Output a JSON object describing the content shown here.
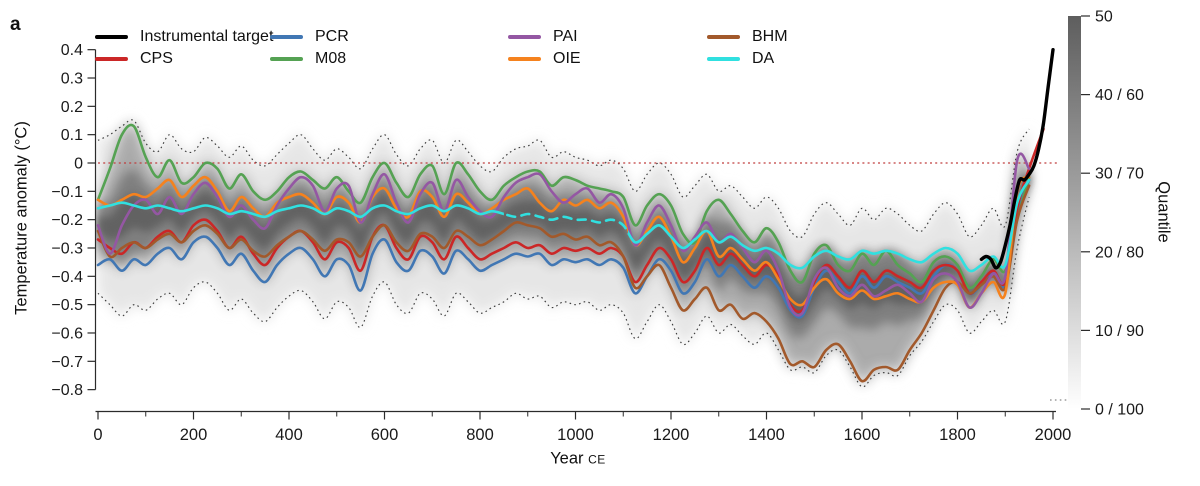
{
  "panel_label": "a",
  "legend": {
    "items": [
      {
        "label": "Instrumental target",
        "color": "#000000"
      },
      {
        "label": "CPS",
        "color": "#cb2727"
      },
      {
        "label": "PCR",
        "color": "#4177b4"
      },
      {
        "label": "M08",
        "color": "#55a253"
      },
      {
        "label": "PAI",
        "color": "#9457a3"
      },
      {
        "label": "OIE",
        "color": "#f5821e"
      },
      {
        "label": "BHM",
        "color": "#a2592b"
      },
      {
        "label": "DA",
        "color": "#30e0e0"
      }
    ]
  },
  "chart_data": {
    "type": "line",
    "title": "",
    "xlabel": "Year CE",
    "xlabel_main": "Year",
    "xlabel_suffix": "CE",
    "ylabel": "Temperature anomaly (°C)",
    "xlim": [
      0,
      2000
    ],
    "ylim": [
      -0.8,
      0.4
    ],
    "x_ticks": [
      0,
      200,
      400,
      600,
      800,
      1000,
      1200,
      1400,
      1600,
      1800,
      2000
    ],
    "x_tick_labels": [
      "0",
      "200",
      "400",
      "600",
      "800",
      "1000",
      "1200",
      "1400",
      "1600",
      "1800",
      "2000"
    ],
    "x_minor_step": 100,
    "y_ticks": [
      0.4,
      0.3,
      0.2,
      0.1,
      0,
      -0.1,
      -0.2,
      -0.3,
      -0.4,
      -0.5,
      -0.6,
      -0.7,
      -0.8
    ],
    "y_tick_labels": [
      "0.4",
      "0.3",
      "0.2",
      "0.1",
      "0",
      "−0.1",
      "−0.2",
      "−0.3",
      "−0.4",
      "−0.5",
      "−0.6",
      "−0.7",
      "−0.8"
    ],
    "zero_line": 0,
    "zero_line_color": "#c03e3e",
    "years": [
      0,
      25,
      50,
      75,
      100,
      125,
      150,
      175,
      200,
      225,
      250,
      275,
      300,
      325,
      350,
      375,
      400,
      425,
      450,
      475,
      500,
      525,
      550,
      575,
      600,
      625,
      650,
      675,
      700,
      725,
      750,
      775,
      800,
      825,
      850,
      875,
      900,
      925,
      950,
      975,
      1000,
      1025,
      1050,
      1075,
      1100,
      1125,
      1150,
      1175,
      1200,
      1225,
      1250,
      1275,
      1300,
      1325,
      1350,
      1375,
      1400,
      1425,
      1450,
      1475,
      1500,
      1525,
      1550,
      1575,
      1600,
      1625,
      1650,
      1675,
      1700,
      1725,
      1750,
      1775,
      1800,
      1825,
      1850,
      1875,
      1900,
      1925,
      1950,
      1980
    ],
    "series": [
      {
        "name": "CPS",
        "color": "#cb2727",
        "z": 3,
        "values": [
          -0.27,
          -0.3,
          -0.32,
          -0.28,
          -0.3,
          -0.26,
          -0.24,
          -0.28,
          -0.22,
          -0.2,
          -0.24,
          -0.3,
          -0.26,
          -0.32,
          -0.36,
          -0.3,
          -0.26,
          -0.24,
          -0.28,
          -0.34,
          -0.28,
          -0.3,
          -0.38,
          -0.26,
          -0.22,
          -0.3,
          -0.34,
          -0.26,
          -0.28,
          -0.34,
          -0.26,
          -0.3,
          -0.34,
          -0.32,
          -0.3,
          -0.28,
          -0.3,
          -0.29,
          -0.32,
          -0.3,
          -0.31,
          -0.3,
          -0.32,
          -0.3,
          -0.33,
          -0.42,
          -0.36,
          -0.3,
          -0.34,
          -0.42,
          -0.38,
          -0.3,
          -0.36,
          -0.32,
          -0.36,
          -0.4,
          -0.36,
          -0.4,
          -0.5,
          -0.52,
          -0.42,
          -0.36,
          -0.4,
          -0.44,
          -0.38,
          -0.42,
          -0.38,
          -0.4,
          -0.42,
          -0.44,
          -0.38,
          -0.36,
          -0.38,
          -0.46,
          -0.42,
          -0.38,
          -0.42,
          -0.16,
          -0.02,
          0.12
        ]
      },
      {
        "name": "PCR",
        "color": "#4177b4",
        "z": 1,
        "values": [
          -0.36,
          -0.34,
          -0.38,
          -0.34,
          -0.36,
          -0.32,
          -0.3,
          -0.34,
          -0.28,
          -0.26,
          -0.3,
          -0.36,
          -0.32,
          -0.38,
          -0.42,
          -0.36,
          -0.32,
          -0.3,
          -0.34,
          -0.4,
          -0.34,
          -0.36,
          -0.45,
          -0.32,
          -0.27,
          -0.35,
          -0.38,
          -0.31,
          -0.33,
          -0.39,
          -0.31,
          -0.34,
          -0.38,
          -0.36,
          -0.34,
          -0.32,
          -0.33,
          -0.32,
          -0.36,
          -0.34,
          -0.35,
          -0.34,
          -0.36,
          -0.34,
          -0.37,
          -0.46,
          -0.4,
          -0.34,
          -0.38,
          -0.46,
          -0.42,
          -0.34,
          -0.4,
          -0.36,
          -0.4,
          -0.44,
          -0.4,
          -0.44,
          -0.52,
          -0.54,
          -0.44,
          -0.38,
          -0.42,
          -0.46,
          -0.4,
          -0.44,
          -0.4,
          -0.42,
          -0.44,
          -0.46,
          -0.4,
          -0.36,
          -0.38,
          -0.46,
          -0.43,
          -0.39,
          -0.43,
          -0.18,
          -0.06,
          null
        ]
      },
      {
        "name": "M08",
        "color": "#55a253",
        "z": 2,
        "values": [
          -0.13,
          -0.02,
          0.1,
          0.13,
          0.02,
          -0.05,
          0.01,
          -0.07,
          -0.05,
          0.0,
          -0.02,
          -0.09,
          -0.04,
          -0.1,
          -0.13,
          -0.1,
          -0.05,
          -0.03,
          -0.06,
          -0.09,
          -0.05,
          -0.1,
          -0.14,
          -0.05,
          0.0,
          -0.07,
          -0.12,
          -0.04,
          -0.01,
          -0.11,
          0.0,
          -0.04,
          -0.1,
          -0.13,
          -0.08,
          -0.05,
          -0.03,
          -0.03,
          -0.08,
          -0.05,
          -0.06,
          -0.08,
          -0.09,
          -0.1,
          -0.12,
          -0.22,
          -0.15,
          -0.11,
          -0.15,
          -0.25,
          -0.28,
          -0.17,
          -0.13,
          -0.18,
          -0.24,
          -0.28,
          -0.23,
          -0.28,
          -0.38,
          -0.42,
          -0.32,
          -0.29,
          -0.36,
          -0.38,
          -0.32,
          -0.36,
          -0.31,
          -0.36,
          -0.39,
          -0.42,
          -0.35,
          -0.33,
          -0.36,
          -0.44,
          -0.4,
          -0.34,
          -0.38,
          -0.2,
          -0.05,
          null
        ]
      },
      {
        "name": "PAI",
        "color": "#9457a3",
        "z": 6,
        "values": [
          -0.22,
          -0.32,
          -0.22,
          -0.15,
          -0.13,
          -0.18,
          -0.12,
          -0.18,
          -0.11,
          -0.07,
          -0.12,
          -0.19,
          -0.15,
          -0.2,
          -0.23,
          -0.15,
          -0.09,
          -0.05,
          -0.08,
          -0.17,
          -0.09,
          -0.08,
          -0.21,
          -0.11,
          -0.04,
          -0.14,
          -0.21,
          -0.11,
          -0.07,
          -0.17,
          -0.06,
          -0.12,
          -0.17,
          -0.19,
          -0.12,
          -0.07,
          -0.05,
          -0.04,
          -0.1,
          -0.14,
          -0.11,
          -0.09,
          -0.14,
          -0.11,
          -0.16,
          -0.29,
          -0.21,
          -0.15,
          -0.22,
          -0.31,
          -0.26,
          -0.21,
          -0.28,
          -0.25,
          -0.3,
          -0.35,
          -0.31,
          -0.38,
          -0.51,
          -0.53,
          -0.41,
          -0.37,
          -0.44,
          -0.47,
          -0.43,
          -0.47,
          -0.45,
          -0.43,
          -0.46,
          -0.49,
          -0.41,
          -0.39,
          -0.42,
          -0.51,
          -0.46,
          -0.39,
          -0.4,
          0.01,
          -0.02,
          null
        ]
      },
      {
        "name": "OIE",
        "color": "#f5821e",
        "z": 5,
        "values": [
          -0.13,
          -0.15,
          -0.13,
          -0.11,
          -0.12,
          -0.09,
          -0.06,
          -0.12,
          -0.08,
          -0.05,
          -0.1,
          -0.17,
          -0.12,
          -0.16,
          -0.19,
          -0.14,
          -0.12,
          -0.11,
          -0.14,
          -0.18,
          -0.12,
          -0.14,
          -0.21,
          -0.12,
          -0.09,
          -0.16,
          -0.19,
          -0.1,
          -0.12,
          -0.19,
          -0.11,
          -0.14,
          -0.18,
          -0.16,
          -0.13,
          -0.11,
          -0.09,
          -0.14,
          -0.17,
          -0.13,
          -0.15,
          -0.13,
          -0.16,
          -0.14,
          -0.19,
          -0.29,
          -0.24,
          -0.19,
          -0.26,
          -0.35,
          -0.3,
          -0.24,
          -0.33,
          -0.3,
          -0.34,
          -0.38,
          -0.35,
          -0.41,
          -0.48,
          -0.5,
          -0.44,
          -0.41,
          -0.46,
          -0.48,
          -0.45,
          -0.48,
          -0.47,
          -0.46,
          -0.48,
          -0.49,
          -0.44,
          -0.42,
          -0.43,
          -0.51,
          -0.46,
          -0.42,
          -0.46,
          -0.1,
          -0.05,
          null
        ]
      },
      {
        "name": "BHM",
        "color": "#a2592b",
        "z": 4,
        "values": [
          -0.24,
          -0.33,
          -0.3,
          -0.28,
          -0.3,
          -0.27,
          -0.25,
          -0.28,
          -0.24,
          -0.22,
          -0.25,
          -0.3,
          -0.27,
          -0.31,
          -0.33,
          -0.29,
          -0.26,
          -0.24,
          -0.27,
          -0.31,
          -0.27,
          -0.28,
          -0.33,
          -0.26,
          -0.22,
          -0.28,
          -0.31,
          -0.25,
          -0.26,
          -0.3,
          -0.24,
          -0.26,
          -0.29,
          -0.27,
          -0.24,
          -0.21,
          -0.22,
          -0.23,
          -0.26,
          -0.25,
          -0.27,
          -0.26,
          -0.29,
          -0.28,
          -0.33,
          -0.44,
          -0.4,
          -0.36,
          -0.44,
          -0.52,
          -0.48,
          -0.44,
          -0.52,
          -0.5,
          -0.55,
          -0.53,
          -0.56,
          -0.62,
          -0.71,
          -0.7,
          -0.72,
          -0.66,
          -0.64,
          -0.7,
          -0.77,
          -0.73,
          -0.72,
          -0.73,
          -0.66,
          -0.6,
          -0.52,
          -0.44,
          -0.42,
          -0.46,
          -0.43,
          -0.4,
          -0.44,
          -0.2,
          -0.08,
          null
        ]
      },
      {
        "name": "DA",
        "color": "#30e0e0",
        "z": 7,
        "dash_year_range": [
          850,
          1110
        ],
        "values": [
          -0.16,
          -0.15,
          -0.14,
          -0.15,
          -0.16,
          -0.15,
          -0.16,
          -0.17,
          -0.16,
          -0.15,
          -0.16,
          -0.18,
          -0.17,
          -0.18,
          -0.19,
          -0.17,
          -0.16,
          -0.15,
          -0.16,
          -0.18,
          -0.16,
          -0.17,
          -0.19,
          -0.16,
          -0.15,
          -0.17,
          -0.18,
          -0.16,
          -0.15,
          -0.17,
          -0.15,
          -0.16,
          -0.18,
          -0.17,
          -0.18,
          -0.19,
          -0.18,
          -0.19,
          -0.2,
          -0.19,
          -0.2,
          -0.2,
          -0.21,
          -0.2,
          -0.22,
          -0.28,
          -0.25,
          -0.22,
          -0.26,
          -0.3,
          -0.27,
          -0.24,
          -0.28,
          -0.26,
          -0.29,
          -0.31,
          -0.3,
          -0.32,
          -0.36,
          -0.37,
          -0.33,
          -0.31,
          -0.33,
          -0.34,
          -0.31,
          -0.32,
          -0.31,
          -0.32,
          -0.34,
          -0.35,
          -0.32,
          -0.3,
          -0.32,
          -0.38,
          -0.36,
          -0.33,
          -0.36,
          -0.14,
          -0.06,
          null
        ]
      }
    ],
    "instrumental": {
      "name": "Instrumental target",
      "color": "#000000",
      "years": [
        1850,
        1860,
        1870,
        1880,
        1890,
        1900,
        1910,
        1920,
        1930,
        1940,
        1950,
        1960,
        1970,
        1980,
        1990,
        2000
      ],
      "values": [
        -0.34,
        -0.33,
        -0.34,
        -0.37,
        -0.35,
        -0.29,
        -0.22,
        -0.13,
        -0.06,
        -0.06,
        -0.04,
        -0.01,
        0.05,
        0.14,
        0.27,
        0.4
      ]
    },
    "envelope": {
      "style": "dotted",
      "upper": [
        0.08,
        0.1,
        0.13,
        0.15,
        0.07,
        0.04,
        0.1,
        0.05,
        0.04,
        0.09,
        0.06,
        0.02,
        0.06,
        0.01,
        -0.01,
        0.03,
        0.07,
        0.1,
        0.05,
        0.01,
        0.05,
        0.02,
        -0.02,
        0.05,
        0.1,
        0.03,
        -0.01,
        0.05,
        0.08,
        0.0,
        0.08,
        0.04,
        -0.01,
        -0.03,
        0.02,
        0.05,
        0.06,
        0.08,
        0.02,
        0.04,
        0.02,
        0.01,
        -0.01,
        0.01,
        -0.02,
        -0.1,
        -0.04,
        0.0,
        -0.04,
        -0.12,
        -0.08,
        -0.04,
        -0.1,
        -0.08,
        -0.12,
        -0.16,
        -0.12,
        -0.16,
        -0.24,
        -0.26,
        -0.18,
        -0.14,
        -0.18,
        -0.22,
        -0.16,
        -0.2,
        -0.16,
        -0.18,
        -0.22,
        -0.24,
        -0.18,
        -0.14,
        -0.18,
        -0.26,
        -0.22,
        -0.16,
        -0.22,
        0.04,
        0.12
      ],
      "lower": [
        -0.46,
        -0.5,
        -0.54,
        -0.5,
        -0.52,
        -0.48,
        -0.46,
        -0.5,
        -0.44,
        -0.42,
        -0.46,
        -0.52,
        -0.48,
        -0.53,
        -0.56,
        -0.51,
        -0.47,
        -0.45,
        -0.49,
        -0.55,
        -0.49,
        -0.51,
        -0.58,
        -0.47,
        -0.42,
        -0.5,
        -0.53,
        -0.46,
        -0.48,
        -0.54,
        -0.46,
        -0.49,
        -0.53,
        -0.51,
        -0.49,
        -0.46,
        -0.48,
        -0.47,
        -0.51,
        -0.49,
        -0.5,
        -0.49,
        -0.52,
        -0.5,
        -0.53,
        -0.62,
        -0.56,
        -0.5,
        -0.56,
        -0.64,
        -0.6,
        -0.54,
        -0.6,
        -0.57,
        -0.61,
        -0.64,
        -0.6,
        -0.66,
        -0.73,
        -0.72,
        -0.74,
        -0.68,
        -0.66,
        -0.72,
        -0.79,
        -0.75,
        -0.74,
        -0.75,
        -0.68,
        -0.63,
        -0.56,
        -0.5,
        -0.52,
        -0.6,
        -0.56,
        -0.52,
        -0.56,
        -0.3,
        -0.12
      ]
    },
    "colorbar": {
      "label": "Quantile",
      "ticks": [
        "50",
        "40 / 60",
        "30 / 70",
        "20 / 80",
        "10 / 90",
        "0 / 100"
      ],
      "top_color": "#5e5e5e",
      "mid_color": "#a6a6a6",
      "bottom_color": "#ffffff"
    }
  }
}
